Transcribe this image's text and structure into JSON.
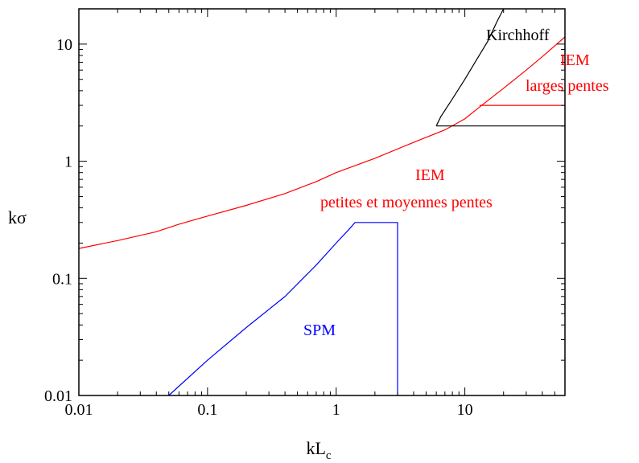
{
  "chart_data": {
    "type": "line",
    "scale": {
      "x": "log",
      "y": "log"
    },
    "xlim": [
      0.01,
      60
    ],
    "ylim": [
      0.01,
      20
    ],
    "xlabel": {
      "main": "kL",
      "sub": "c"
    },
    "ylabel": "kσ",
    "x_ticks": [
      {
        "value": 0.01,
        "label": "0.01"
      },
      {
        "value": 0.1,
        "label": "0.1"
      },
      {
        "value": 1,
        "label": "1"
      },
      {
        "value": 10,
        "label": "10"
      }
    ],
    "y_ticks": [
      {
        "value": 0.01,
        "label": "0.01"
      },
      {
        "value": 0.1,
        "label": "0.1"
      },
      {
        "value": 1,
        "label": "1"
      },
      {
        "value": 10,
        "label": "10"
      }
    ],
    "grid": false,
    "series": [
      {
        "color": "#ff0000",
        "x": [
          0.01,
          0.02,
          0.04,
          0.06,
          0.1,
          0.2,
          0.4,
          0.7,
          1,
          2,
          4,
          7,
          10,
          13,
          20,
          30,
          40,
          60
        ],
        "y": [
          0.18,
          0.21,
          0.25,
          0.29,
          0.34,
          0.42,
          0.53,
          0.67,
          0.8,
          1.06,
          1.45,
          1.85,
          2.3,
          2.9,
          4.2,
          6.0,
          7.8,
          11.5
        ]
      },
      {
        "color": "#ff0000",
        "x": [
          13,
          60
        ],
        "y": [
          3.0,
          3.0
        ]
      },
      {
        "color": "#000000",
        "x": [
          6,
          60
        ],
        "y": [
          2.0,
          2.0
        ]
      },
      {
        "color": "#000000",
        "x": [
          6,
          6.5,
          8,
          10,
          12,
          15,
          18,
          20
        ],
        "y": [
          2.0,
          2.4,
          3.4,
          5.0,
          7.0,
          10.5,
          16,
          20
        ]
      },
      {
        "color": "#0000ff",
        "x": [
          0.05,
          0.1,
          0.2,
          0.4,
          0.7,
          1.0,
          1.25,
          1.4,
          3.0,
          3.0
        ],
        "y": [
          0.01,
          0.02,
          0.038,
          0.07,
          0.13,
          0.2,
          0.26,
          0.3,
          0.3,
          0.01
        ]
      }
    ],
    "annotations": [
      {
        "text": "Kirchhoff",
        "color": "#000000"
      },
      {
        "text": "IEM",
        "color": "#ff0000"
      },
      {
        "text": "larges pentes",
        "color": "#ff0000"
      },
      {
        "text": "IEM",
        "color": "#ff0000"
      },
      {
        "text": "petites et moyennes pentes",
        "color": "#ff0000"
      },
      {
        "text": "SPM",
        "color": "#0000ff"
      }
    ]
  }
}
